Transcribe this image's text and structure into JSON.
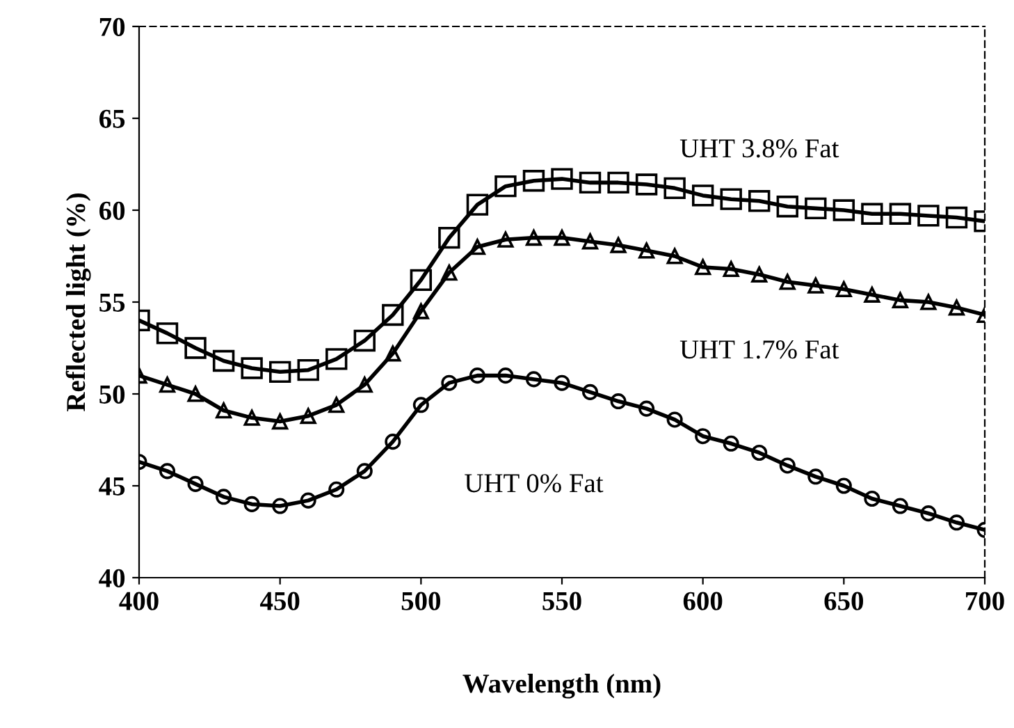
{
  "chart_data": {
    "type": "line",
    "xlabel": "Wavelength (nm)",
    "ylabel": "Reflected light (%)",
    "x": [
      400,
      410,
      420,
      430,
      440,
      450,
      460,
      470,
      480,
      490,
      500,
      510,
      520,
      530,
      540,
      550,
      560,
      570,
      580,
      590,
      600,
      610,
      620,
      630,
      640,
      650,
      660,
      670,
      680,
      690,
      700
    ],
    "series": [
      {
        "name": "UHT 3.8% Fat",
        "color": "#000000",
        "marker": "square",
        "values": [
          54.0,
          53.3,
          52.5,
          51.8,
          51.4,
          51.2,
          51.3,
          51.9,
          52.9,
          54.3,
          56.2,
          58.5,
          60.3,
          61.3,
          61.6,
          61.7,
          61.5,
          61.5,
          61.4,
          61.2,
          60.8,
          60.6,
          60.5,
          60.2,
          60.1,
          60.0,
          59.8,
          59.8,
          59.7,
          59.6,
          59.4
        ]
      },
      {
        "name": "UHT 1.7% Fat",
        "color": "#000000",
        "marker": "triangle",
        "values": [
          51.0,
          50.5,
          50.0,
          49.1,
          48.7,
          48.5,
          48.8,
          49.4,
          50.5,
          52.2,
          54.5,
          56.6,
          58.0,
          58.4,
          58.5,
          58.5,
          58.3,
          58.1,
          57.8,
          57.5,
          56.9,
          56.8,
          56.5,
          56.1,
          55.9,
          55.7,
          55.4,
          55.1,
          55.0,
          54.7,
          54.3
        ]
      },
      {
        "name": "UHT 0% Fat",
        "color": "#000000",
        "marker": "circle",
        "values": [
          46.3,
          45.8,
          45.1,
          44.4,
          44.0,
          43.9,
          44.2,
          44.8,
          45.8,
          47.4,
          49.4,
          50.6,
          51.0,
          51.0,
          50.8,
          50.6,
          50.1,
          49.6,
          49.2,
          48.6,
          47.7,
          47.3,
          46.8,
          46.1,
          45.5,
          45.0,
          44.3,
          43.9,
          43.5,
          43.0,
          42.6
        ]
      }
    ],
    "xlim": [
      400,
      700
    ],
    "ylim": [
      40,
      70
    ],
    "xticks": [
      400,
      450,
      500,
      550,
      600,
      650,
      700
    ],
    "yticks": [
      40,
      45,
      50,
      55,
      60,
      65,
      70
    ],
    "grid": false,
    "legend": false,
    "line_style": "solid"
  }
}
